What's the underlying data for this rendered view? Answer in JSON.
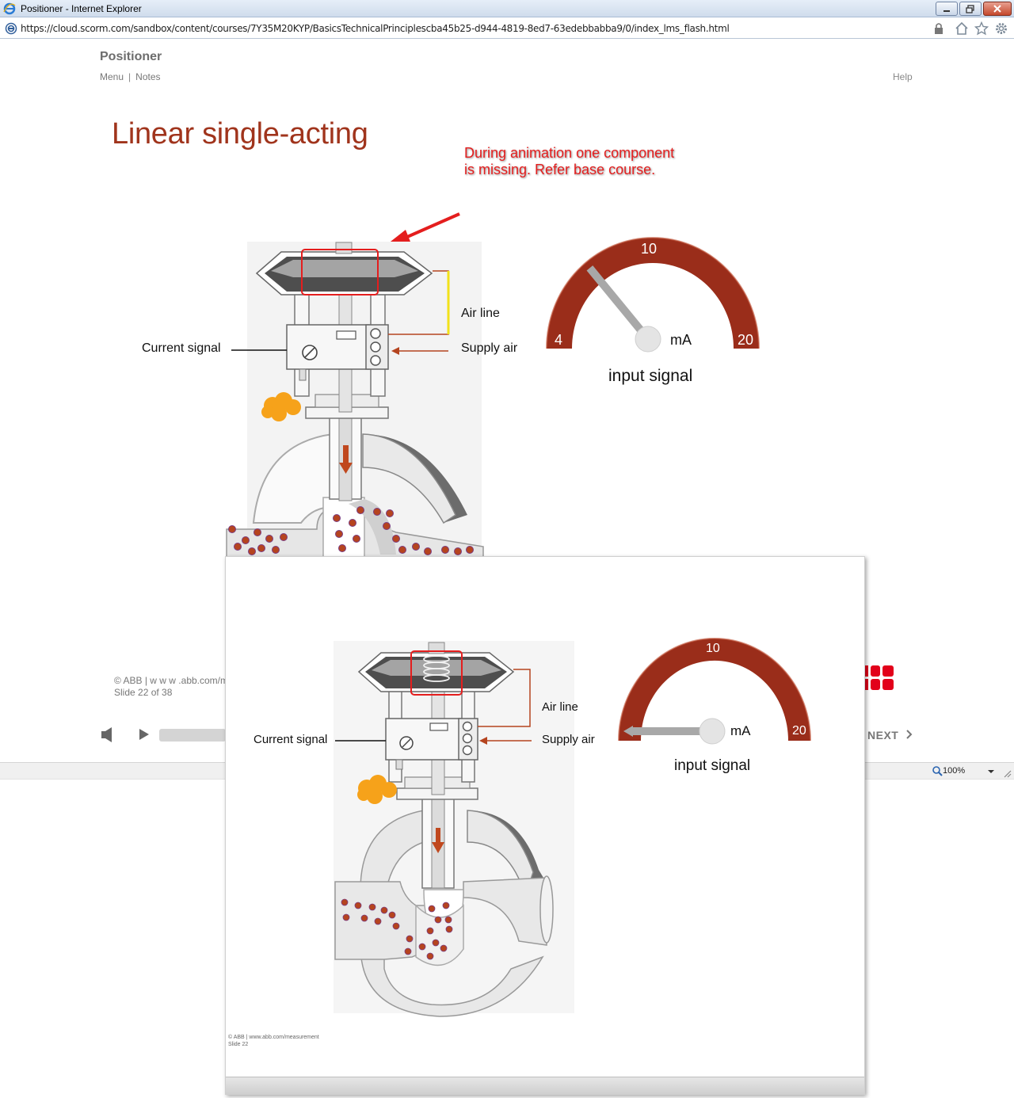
{
  "window": {
    "title": "Positioner - Internet Explorer",
    "url": "https://cloud.scorm.com/sandbox/content/courses/7Y35M20KYP/BasicsTechnicalPrinciplescba45b25-d944-4819-8ed7-63edebbabba9/0/index_lms_flash.html",
    "icons": [
      "ie-logo-icon",
      "minimize-icon",
      "restore-icon",
      "close-icon",
      "lock-icon",
      "home-icon",
      "favorites-star-icon",
      "gear-icon"
    ]
  },
  "course": {
    "title": "Positioner",
    "nav": {
      "menu": "Menu",
      "separator": "|",
      "notes": "Notes"
    },
    "help": "Help"
  },
  "slide": {
    "heading": "Linear single-acting",
    "annotation": "During animation one component is missing. Refer base course.",
    "labels": {
      "air_line": "Air line",
      "supply_air": "Supply air",
      "current_signal": "Current signal"
    },
    "gauge": {
      "min": "4",
      "mid": "10",
      "max": "20",
      "unit": "mA",
      "caption": "input signal",
      "needle_value": 8.5,
      "color": "#9a2d1a"
    },
    "footer": {
      "copyright": "© ABB | w w w .abb.com/m",
      "slide_counter": "Slide 22 of 38"
    }
  },
  "player": {
    "next_label": "NEXT",
    "icons": [
      "speaker-icon",
      "play-icon",
      "chevron-right-icon"
    ]
  },
  "statusbar": {
    "zoom": "100%"
  },
  "reference_slide": {
    "labels": {
      "air_line": "Air line",
      "supply_air": "Supply air",
      "current_signal": "Current signal"
    },
    "gauge": {
      "mid": "10",
      "max": "20",
      "unit": "mA",
      "caption": "input signal",
      "needle_value": 4
    },
    "footer": {
      "copyright": "© ABB  | www.abb.com/measurement",
      "slide": "Slide 22"
    }
  },
  "colors": {
    "heading": "#a0341c",
    "annotation": "#e41e1e",
    "gauge": "#9a2d1a",
    "media_dots": "#b5441f",
    "arrow": "#c0481e"
  }
}
